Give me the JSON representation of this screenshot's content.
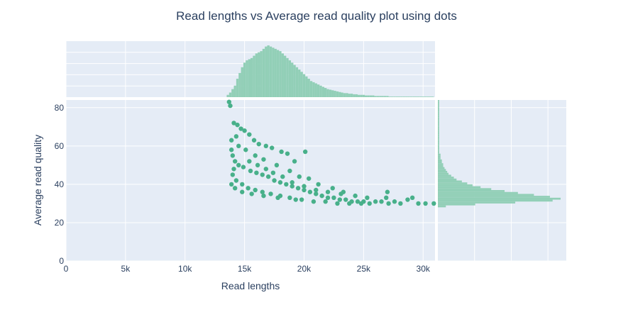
{
  "chart_data": {
    "type": "scatter",
    "title": "Read lengths vs Average read quality plot using dots",
    "xlabel": "Read lengths",
    "ylabel": "Average read quality",
    "xlim": [
      0,
      31000
    ],
    "ylim": [
      0,
      84
    ],
    "x_ticks": [
      {
        "value": 0,
        "label": "0"
      },
      {
        "value": 5000,
        "label": "5k"
      },
      {
        "value": 10000,
        "label": "10k"
      },
      {
        "value": 15000,
        "label": "15k"
      },
      {
        "value": 20000,
        "label": "20k"
      },
      {
        "value": 25000,
        "label": "25k"
      },
      {
        "value": 30000,
        "label": "30k"
      }
    ],
    "y_ticks": [
      {
        "value": 0,
        "label": "0"
      },
      {
        "value": 20,
        "label": "20"
      },
      {
        "value": 40,
        "label": "40"
      },
      {
        "value": 60,
        "label": "60"
      },
      {
        "value": 80,
        "label": "80"
      }
    ],
    "grid": true,
    "colors": {
      "marker": "#48b08a",
      "histogram": "#92cfb7",
      "plot_bg": "#e5ecf6",
      "text": "#2a3f5f"
    },
    "marginal_x": {
      "type": "histogram",
      "bins_start": 13500,
      "bin_width": 200,
      "counts": [
        4,
        8,
        14,
        20,
        32,
        42,
        52,
        60,
        64,
        66,
        68,
        72,
        76,
        78,
        80,
        84,
        88,
        90,
        88,
        86,
        84,
        82,
        80,
        76,
        72,
        68,
        64,
        60,
        56,
        52,
        48,
        44,
        40,
        36,
        32,
        28,
        26,
        24,
        22,
        20,
        18,
        16,
        14,
        13,
        12,
        11,
        10,
        9,
        8,
        7,
        7,
        6,
        6,
        5,
        5,
        4,
        4,
        4,
        3,
        3,
        3,
        3,
        2,
        2,
        2,
        2,
        2,
        2,
        1,
        1,
        1,
        1,
        1,
        1,
        1,
        1,
        1,
        1,
        1,
        1,
        1,
        1,
        1,
        1,
        1,
        1,
        1
      ]
    },
    "marginal_y": {
      "type": "histogram",
      "bins_start": 28,
      "bin_width": 1,
      "counts": [
        6,
        28,
        58,
        86,
        92,
        84,
        72,
        60,
        50,
        40,
        32,
        26,
        22,
        18,
        14,
        12,
        10,
        8,
        7,
        6,
        5,
        4,
        4,
        3,
        3,
        2,
        2,
        2,
        1,
        1,
        1,
        1,
        1,
        1,
        1,
        1,
        1,
        1,
        1,
        1,
        1,
        1,
        1,
        1,
        1,
        1,
        1,
        1,
        1,
        1,
        1,
        1,
        1,
        1,
        1,
        1
      ]
    },
    "points": [
      [
        13700,
        83
      ],
      [
        13800,
        81
      ],
      [
        14100,
        72
      ],
      [
        14400,
        71
      ],
      [
        14700,
        69
      ],
      [
        15000,
        68
      ],
      [
        14300,
        65
      ],
      [
        15400,
        66
      ],
      [
        15800,
        63
      ],
      [
        16200,
        61
      ],
      [
        16800,
        60
      ],
      [
        17300,
        59
      ],
      [
        18100,
        57
      ],
      [
        18600,
        56
      ],
      [
        20100,
        57
      ],
      [
        19200,
        52
      ],
      [
        13900,
        58
      ],
      [
        14000,
        55
      ],
      [
        14200,
        52
      ],
      [
        14500,
        50
      ],
      [
        14100,
        48
      ],
      [
        14900,
        49
      ],
      [
        15500,
        47
      ],
      [
        16000,
        46
      ],
      [
        16500,
        45
      ],
      [
        17000,
        44
      ],
      [
        17500,
        42
      ],
      [
        18000,
        41
      ],
      [
        18500,
        40
      ],
      [
        19000,
        39
      ],
      [
        19500,
        38
      ],
      [
        20000,
        37
      ],
      [
        20500,
        36
      ],
      [
        21000,
        35
      ],
      [
        21500,
        34
      ],
      [
        22000,
        33
      ],
      [
        22500,
        33
      ],
      [
        23000,
        32
      ],
      [
        23500,
        32
      ],
      [
        24000,
        31
      ],
      [
        24500,
        31
      ],
      [
        25000,
        31
      ],
      [
        25500,
        30
      ],
      [
        26000,
        31
      ],
      [
        26500,
        31
      ],
      [
        27000,
        36
      ],
      [
        26900,
        33
      ],
      [
        27100,
        30
      ],
      [
        27600,
        31
      ],
      [
        28100,
        30
      ],
      [
        28700,
        32
      ],
      [
        29100,
        33
      ],
      [
        29600,
        30
      ],
      [
        30200,
        30
      ],
      [
        30900,
        30
      ],
      [
        22400,
        38
      ],
      [
        23300,
        36
      ],
      [
        21200,
        40
      ],
      [
        20400,
        43
      ],
      [
        19600,
        44
      ],
      [
        18800,
        47
      ],
      [
        17700,
        50
      ],
      [
        16600,
        53
      ],
      [
        15900,
        55
      ],
      [
        15100,
        58
      ],
      [
        14500,
        60
      ],
      [
        13900,
        63
      ],
      [
        14000,
        45
      ],
      [
        14300,
        42
      ],
      [
        14800,
        40
      ],
      [
        15300,
        38
      ],
      [
        15900,
        37
      ],
      [
        16500,
        36
      ],
      [
        17200,
        35
      ],
      [
        18000,
        34
      ],
      [
        18800,
        33
      ],
      [
        19800,
        32
      ],
      [
        20800,
        31
      ],
      [
        21800,
        31
      ],
      [
        22800,
        30
      ],
      [
        23800,
        30
      ],
      [
        24800,
        30
      ],
      [
        13900,
        40
      ],
      [
        14200,
        38
      ],
      [
        14800,
        36
      ],
      [
        15600,
        35
      ],
      [
        16600,
        34
      ],
      [
        17800,
        33
      ],
      [
        19300,
        32
      ],
      [
        25300,
        33
      ],
      [
        24300,
        34
      ],
      [
        23100,
        35
      ],
      [
        22000,
        36
      ],
      [
        21000,
        37
      ],
      [
        20000,
        39
      ],
      [
        19000,
        41
      ],
      [
        18200,
        44
      ],
      [
        17400,
        46
      ],
      [
        16800,
        48
      ],
      [
        16100,
        50
      ],
      [
        15400,
        52
      ]
    ]
  }
}
